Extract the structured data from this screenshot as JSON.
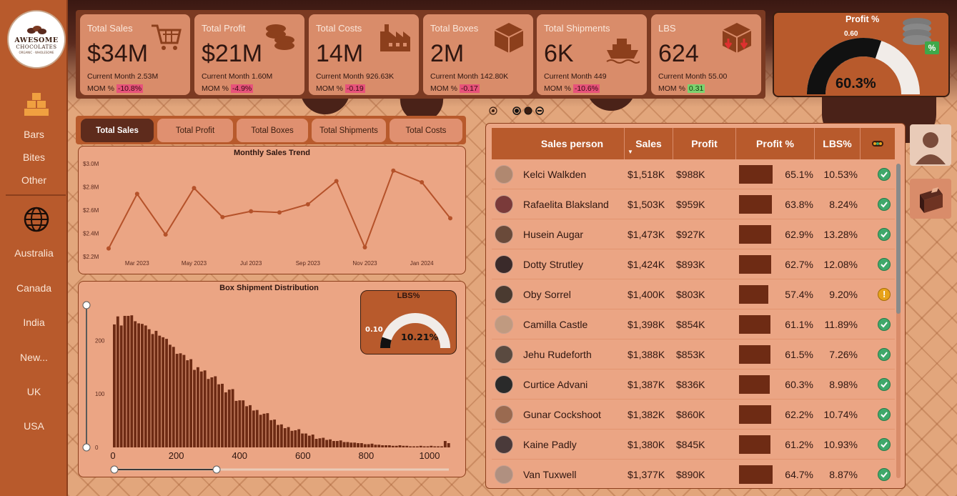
{
  "logo": {
    "line1": "AWESOME",
    "line2": "CHOCOLATES",
    "line3": "ORGANIC · WHOLESOME"
  },
  "sidebar": {
    "categories": [
      "Bars",
      "Bites",
      "Other"
    ],
    "countries": [
      "Australia",
      "Canada",
      "India",
      "New...",
      "UK",
      "USA"
    ]
  },
  "kpis": [
    {
      "title": "Total Sales",
      "value": "$34M",
      "current": "Current Month 2.53M",
      "mom_label": "MOM %",
      "mom": "-10.8%",
      "mom_trend": "neg",
      "icon": "shopping-cart-icon"
    },
    {
      "title": "Total Profit",
      "value": "$21M",
      "current": "Current Month 1.60M",
      "mom_label": "MOM %",
      "mom": "-4.9%",
      "mom_trend": "neg",
      "icon": "coins-icon"
    },
    {
      "title": "Total Costs",
      "value": "14M",
      "current": "Current Month 926.63K",
      "mom_label": "MOM %",
      "mom": "-0.19",
      "mom_trend": "neg",
      "icon": "factory-icon"
    },
    {
      "title": "Total Boxes",
      "value": "2M",
      "current": "Current Month 142.80K",
      "mom_label": "MOM %",
      "mom": "-0.17",
      "mom_trend": "neg",
      "icon": "box-icon"
    },
    {
      "title": "Total Shipments",
      "value": "6K",
      "current": "Current Month 449",
      "mom_label": "MOM %",
      "mom": "-10.6%",
      "mom_trend": "neg",
      "icon": "ship-icon"
    },
    {
      "title": "LBS",
      "value": "624",
      "current": "Current Month 55.00",
      "mom_label": "MOM %",
      "mom": "0.31",
      "mom_trend": "pos",
      "icon": "box-down-arrows-icon"
    }
  ],
  "profit_gauge": {
    "title": "Profit %",
    "target": "0.60",
    "value": "60.3%",
    "fraction": 0.603,
    "badge": "%"
  },
  "tabs": [
    "Total Sales",
    "Total Profit",
    "Total Boxes",
    "Total Shipments",
    "Total Costs"
  ],
  "active_tab": 0,
  "chart_data": [
    {
      "type": "line",
      "title": "Monthly Sales Trend",
      "x": [
        "Feb 2023",
        "Mar 2023",
        "Apr 2023",
        "May 2023",
        "Jun 2023",
        "Jul 2023",
        "Aug 2023",
        "Sep 2023",
        "Oct 2023",
        "Nov 2023",
        "Dec 2023",
        "Jan 2024",
        "Feb 2024"
      ],
      "x_tick_labels": [
        "Mar 2023",
        "May 2023",
        "Jul 2023",
        "Sep 2023",
        "Nov 2023",
        "Jan 2024"
      ],
      "values": [
        2.27,
        2.74,
        2.39,
        2.79,
        2.54,
        2.59,
        2.58,
        2.65,
        2.85,
        2.28,
        2.94,
        2.84,
        2.53
      ],
      "y_ticks": [
        "$2.2M",
        "$2.4M",
        "$2.6M",
        "$2.8M",
        "$3.0M"
      ],
      "ylim": [
        2.2,
        3.0
      ],
      "color": "#b5522a"
    },
    {
      "type": "bar",
      "title": "Box Shipment Distribution",
      "x_ticks": [
        "0",
        "200",
        "400",
        "600",
        "800",
        "1000"
      ],
      "y_ticks": [
        "0",
        "100",
        "200"
      ],
      "xlim": [
        0,
        1070
      ],
      "ylim": [
        0,
        270
      ],
      "bin_width": 11,
      "values": [
        230,
        245,
        228,
        246,
        246,
        247,
        236,
        232,
        231,
        228,
        221,
        212,
        218,
        209,
        206,
        203,
        192,
        188,
        175,
        176,
        173,
        163,
        165,
        145,
        150,
        142,
        144,
        128,
        131,
        133,
        118,
        119,
        103,
        108,
        109,
        87,
        88,
        88,
        77,
        79,
        69,
        70,
        61,
        63,
        64,
        51,
        52,
        42,
        43,
        36,
        38,
        31,
        32,
        34,
        26,
        26,
        22,
        24,
        16,
        17,
        18,
        14,
        15,
        12,
        12,
        13,
        10,
        10,
        9,
        9,
        8,
        8,
        6,
        6,
        7,
        5,
        5,
        4,
        4,
        4,
        3,
        3,
        4,
        3,
        3,
        2,
        2,
        2,
        3,
        2,
        2,
        3,
        2,
        2,
        2,
        12,
        8
      ],
      "color": "#6e2b14"
    }
  ],
  "lbs_gauge": {
    "title": "LBS%",
    "target": "0.10",
    "value": "10.21%",
    "fraction": 0.1021
  },
  "table": {
    "headers": [
      "Sales person",
      "Sales",
      "Profit",
      "Profit %",
      "LBS%"
    ],
    "rows": [
      {
        "name": "Kelci Walkden",
        "sales": "$1,518K",
        "profit": "$988K",
        "pct": "65.1%",
        "pct_val": 0.651,
        "lbs": "10.53%",
        "status": "ok"
      },
      {
        "name": "Rafaelita Blaksland",
        "sales": "$1,503K",
        "profit": "$959K",
        "pct": "63.8%",
        "pct_val": 0.638,
        "lbs": "8.24%",
        "status": "ok"
      },
      {
        "name": "Husein Augar",
        "sales": "$1,473K",
        "profit": "$927K",
        "pct": "62.9%",
        "pct_val": 0.629,
        "lbs": "13.28%",
        "status": "ok"
      },
      {
        "name": "Dotty Strutley",
        "sales": "$1,424K",
        "profit": "$893K",
        "pct": "62.7%",
        "pct_val": 0.627,
        "lbs": "12.08%",
        "status": "ok"
      },
      {
        "name": "Oby Sorrel",
        "sales": "$1,400K",
        "profit": "$803K",
        "pct": "57.4%",
        "pct_val": 0.574,
        "lbs": "9.20%",
        "status": "warn"
      },
      {
        "name": "Camilla Castle",
        "sales": "$1,398K",
        "profit": "$854K",
        "pct": "61.1%",
        "pct_val": 0.611,
        "lbs": "11.89%",
        "status": "ok"
      },
      {
        "name": "Jehu Rudeforth",
        "sales": "$1,388K",
        "profit": "$853K",
        "pct": "61.5%",
        "pct_val": 0.615,
        "lbs": "7.26%",
        "status": "ok"
      },
      {
        "name": "Curtice Advani",
        "sales": "$1,387K",
        "profit": "$836K",
        "pct": "60.3%",
        "pct_val": 0.603,
        "lbs": "8.98%",
        "status": "ok"
      },
      {
        "name": "Gunar Cockshoot",
        "sales": "$1,382K",
        "profit": "$860K",
        "pct": "62.2%",
        "pct_val": 0.622,
        "lbs": "10.74%",
        "status": "ok"
      },
      {
        "name": "Kaine Padly",
        "sales": "$1,380K",
        "profit": "$845K",
        "pct": "61.2%",
        "pct_val": 0.612,
        "lbs": "10.93%",
        "status": "ok"
      },
      {
        "name": "Van Tuxwell",
        "sales": "$1,377K",
        "profit": "$890K",
        "pct": "64.7%",
        "pct_val": 0.647,
        "lbs": "8.87%",
        "status": "ok"
      }
    ]
  }
}
